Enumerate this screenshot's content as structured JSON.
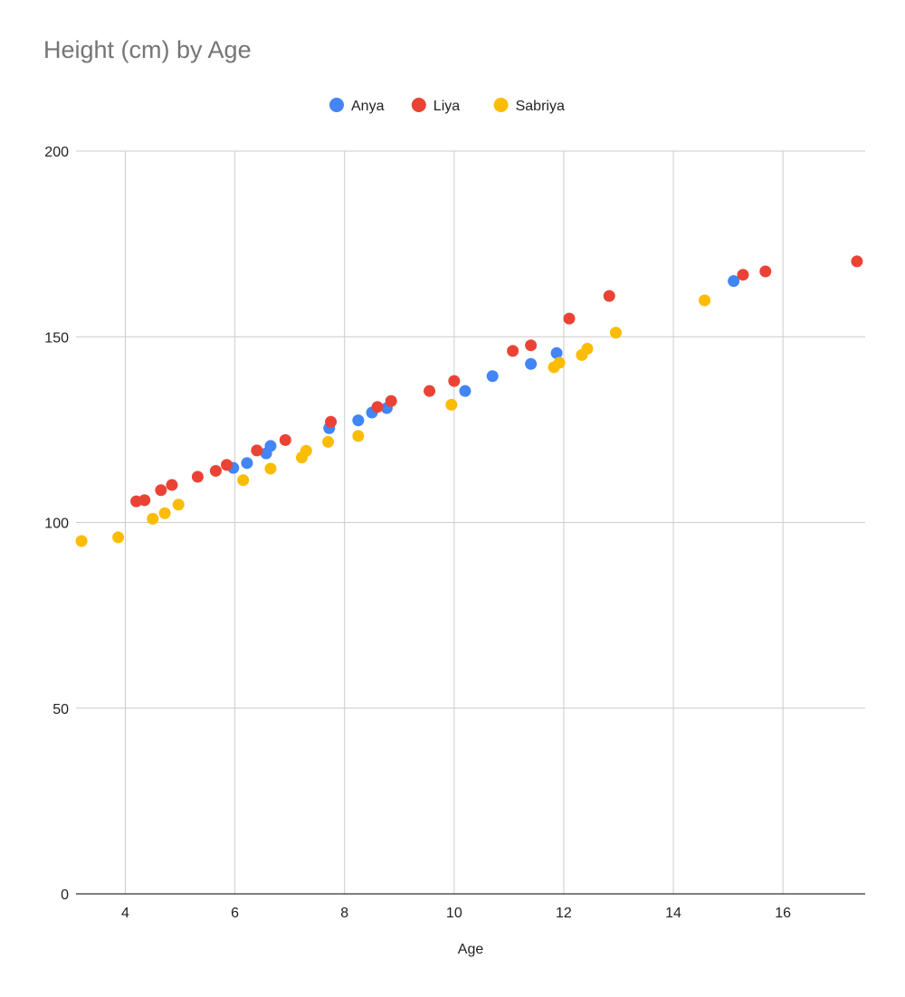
{
  "chart_data": {
    "type": "scatter",
    "title": "Height (cm) by Age",
    "xlabel": "Age",
    "ylabel": "",
    "xlim": [
      3.1,
      17.5
    ],
    "ylim": [
      0,
      200
    ],
    "xticks": [
      4,
      6,
      8,
      10,
      12,
      14,
      16
    ],
    "yticks": [
      0,
      50,
      100,
      150,
      200
    ],
    "grid": true,
    "legend_position": "top",
    "series": [
      {
        "name": "Anya",
        "color": "#4285f4",
        "points": [
          [
            5.97,
            114.7
          ],
          [
            6.22,
            116.0
          ],
          [
            6.57,
            118.6
          ],
          [
            6.65,
            120.6
          ],
          [
            7.72,
            125.4
          ],
          [
            8.25,
            127.5
          ],
          [
            8.5,
            129.6
          ],
          [
            8.77,
            130.8
          ],
          [
            10.2,
            135.4
          ],
          [
            10.7,
            139.4
          ],
          [
            11.4,
            142.7
          ],
          [
            11.87,
            145.6
          ],
          [
            15.1,
            165.0
          ]
        ]
      },
      {
        "name": "Liya",
        "color": "#ea4335",
        "points": [
          [
            4.2,
            105.7
          ],
          [
            4.35,
            106.0
          ],
          [
            4.65,
            108.7
          ],
          [
            4.85,
            110.1
          ],
          [
            5.32,
            112.3
          ],
          [
            5.65,
            113.9
          ],
          [
            5.85,
            115.5
          ],
          [
            6.4,
            119.4
          ],
          [
            6.92,
            122.2
          ],
          [
            7.75,
            127.1
          ],
          [
            8.6,
            131.1
          ],
          [
            8.85,
            132.7
          ],
          [
            9.55,
            135.4
          ],
          [
            10.0,
            138.1
          ],
          [
            11.07,
            146.2
          ],
          [
            11.4,
            147.7
          ],
          [
            12.1,
            154.9
          ],
          [
            12.83,
            161.0
          ],
          [
            15.27,
            166.7
          ],
          [
            15.68,
            167.6
          ],
          [
            17.35,
            170.3
          ]
        ]
      },
      {
        "name": "Sabriya",
        "color": "#fbbc04",
        "points": [
          [
            3.2,
            95.0
          ],
          [
            3.87,
            96.0
          ],
          [
            4.5,
            101.0
          ],
          [
            4.72,
            102.5
          ],
          [
            4.97,
            104.8
          ],
          [
            6.15,
            111.4
          ],
          [
            6.65,
            114.5
          ],
          [
            7.22,
            117.5
          ],
          [
            7.3,
            119.3
          ],
          [
            7.7,
            121.7
          ],
          [
            8.25,
            123.3
          ],
          [
            9.95,
            131.7
          ],
          [
            11.82,
            141.8
          ],
          [
            11.92,
            143.0
          ],
          [
            12.33,
            145.1
          ],
          [
            12.43,
            146.8
          ],
          [
            12.95,
            151.1
          ],
          [
            14.57,
            159.8
          ]
        ]
      }
    ]
  }
}
